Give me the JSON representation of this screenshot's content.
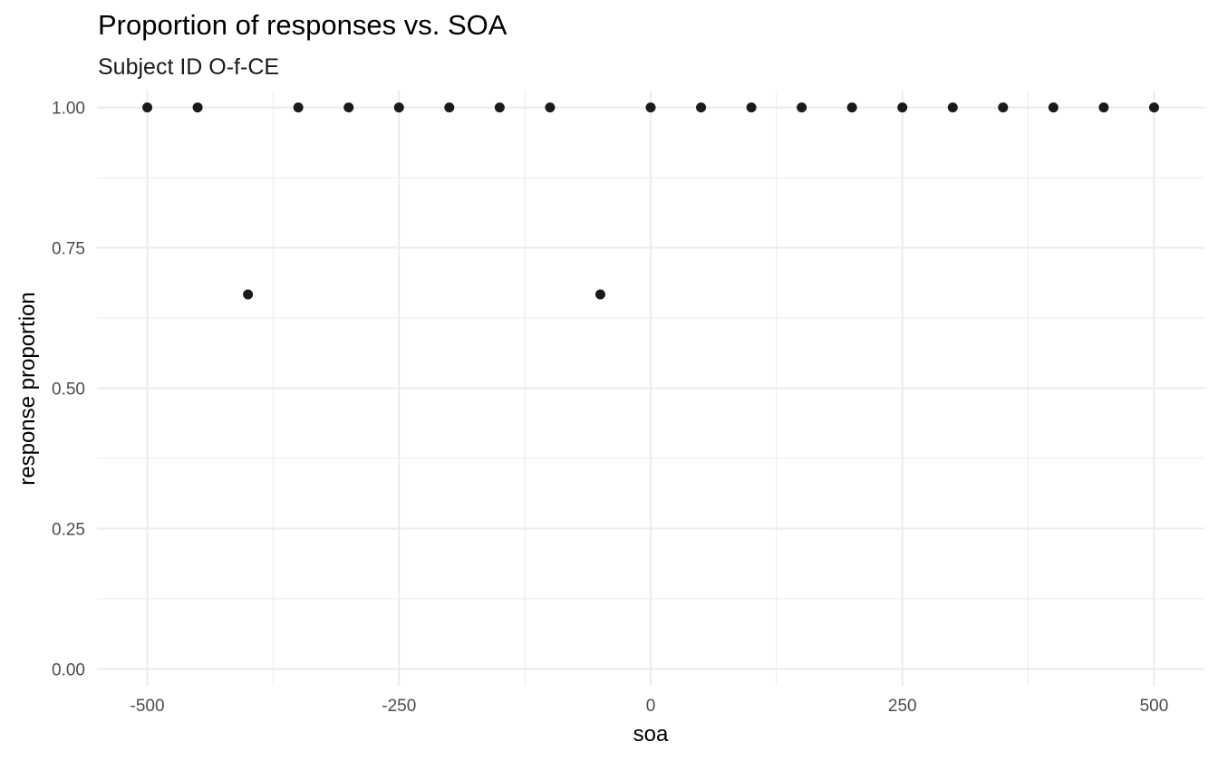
{
  "chart_data": {
    "type": "scatter",
    "title": "Proportion of responses vs. SOA",
    "subtitle": "Subject ID O-f-CE",
    "xlabel": "soa",
    "ylabel": "response proportion",
    "xlim": [
      -550,
      550
    ],
    "ylim": [
      -0.03,
      1.03
    ],
    "x_ticks": [
      -500,
      -250,
      0,
      250,
      500
    ],
    "x_tick_labels": [
      "-500",
      "-250",
      "0",
      "250",
      "500"
    ],
    "y_ticks": [
      0,
      0.25,
      0.5,
      0.75,
      1
    ],
    "y_tick_labels": [
      "0.00",
      "0.25",
      "0.50",
      "0.75",
      "1.00"
    ],
    "grid": true,
    "legend": "none",
    "point_color": "#1a1a1a",
    "grid_color": "#ebebeb",
    "points": [
      {
        "x": -500,
        "y": 1.0
      },
      {
        "x": -450,
        "y": 1.0
      },
      {
        "x": -400,
        "y": 0.667
      },
      {
        "x": -350,
        "y": 1.0
      },
      {
        "x": -300,
        "y": 1.0
      },
      {
        "x": -250,
        "y": 1.0
      },
      {
        "x": -200,
        "y": 1.0
      },
      {
        "x": -150,
        "y": 1.0
      },
      {
        "x": -100,
        "y": 1.0
      },
      {
        "x": -50,
        "y": 0.667
      },
      {
        "x": 0,
        "y": 1.0
      },
      {
        "x": 50,
        "y": 1.0
      },
      {
        "x": 100,
        "y": 1.0
      },
      {
        "x": 150,
        "y": 1.0
      },
      {
        "x": 200,
        "y": 1.0
      },
      {
        "x": 250,
        "y": 1.0
      },
      {
        "x": 300,
        "y": 1.0
      },
      {
        "x": 350,
        "y": 1.0
      },
      {
        "x": 400,
        "y": 1.0
      },
      {
        "x": 450,
        "y": 1.0
      },
      {
        "x": 500,
        "y": 1.0
      }
    ]
  }
}
